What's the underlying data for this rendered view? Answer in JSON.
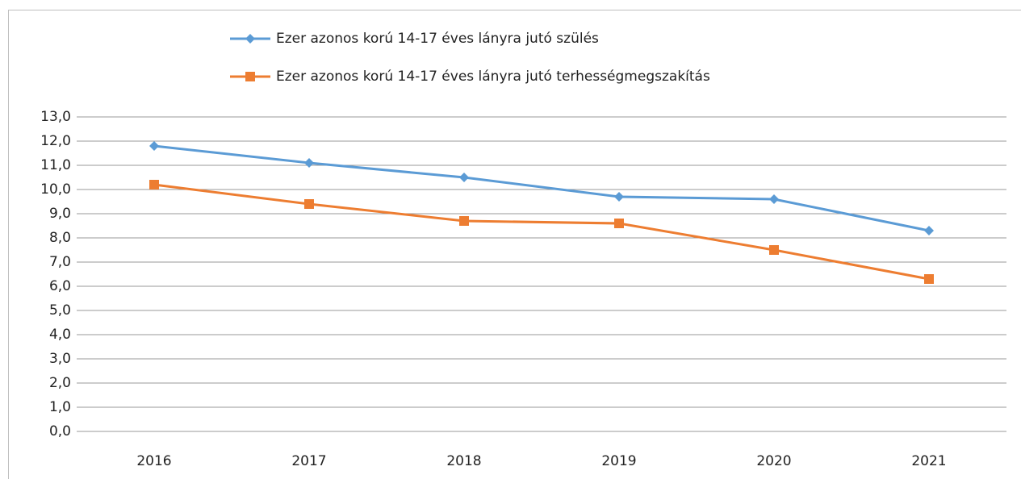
{
  "chart_data": {
    "type": "line",
    "categories": [
      "2016",
      "2017",
      "2018",
      "2019",
      "2020",
      "2021"
    ],
    "series": [
      {
        "name": "Ezer azonos korú 14-17 éves lányra jutó szülés",
        "color": "#5b9bd5",
        "marker": "diamond",
        "values": [
          11.8,
          11.1,
          10.5,
          9.7,
          9.6,
          8.3
        ]
      },
      {
        "name": "Ezer azonos korú 14-17 éves lányra jutó terhességmegszakítás",
        "color": "#ed7d31",
        "marker": "square",
        "values": [
          10.2,
          9.4,
          8.7,
          8.6,
          7.5,
          6.3
        ]
      }
    ],
    "ylim": [
      0,
      13
    ],
    "yticks": [
      {
        "value": 0,
        "label": "0,0"
      },
      {
        "value": 1,
        "label": "1,0"
      },
      {
        "value": 2,
        "label": "2,0"
      },
      {
        "value": 3,
        "label": "3,0"
      },
      {
        "value": 4,
        "label": "4,0"
      },
      {
        "value": 5,
        "label": "5,0"
      },
      {
        "value": 6,
        "label": "6,0"
      },
      {
        "value": 7,
        "label": "7,0"
      },
      {
        "value": 8,
        "label": "8,0"
      },
      {
        "value": 9,
        "label": "9,0"
      },
      {
        "value": 10,
        "label": "10,0"
      },
      {
        "value": 11,
        "label": "11,0"
      },
      {
        "value": 12,
        "label": "12,0"
      },
      {
        "value": 13,
        "label": "13,0"
      }
    ],
    "grid": true,
    "legend": "top"
  }
}
